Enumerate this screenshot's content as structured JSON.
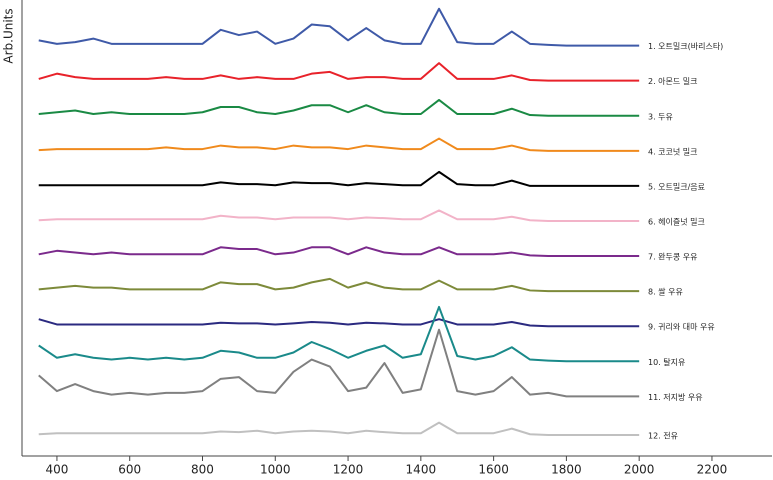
{
  "chart_data": {
    "type": "line",
    "y_label": "Arb.Units",
    "x": [
      350,
      400,
      450,
      500,
      550,
      600,
      650,
      700,
      750,
      800,
      850,
      900,
      950,
      1000,
      1050,
      1100,
      1150,
      1200,
      1250,
      1300,
      1350,
      1400,
      1450,
      1500,
      1550,
      1600,
      1650,
      1700,
      1750,
      1800,
      1850,
      1900,
      1950,
      2000
    ],
    "xlim": [
      304,
      2365
    ],
    "xticks": [
      400,
      600,
      800,
      1000,
      1200,
      1400,
      1600,
      1800,
      2000,
      2200
    ],
    "ylim": [
      0,
      13
    ],
    "series": [
      {
        "name": "1. 오트밀크(바리스타)",
        "color": "#3f5aa8",
        "values": [
          11.85,
          11.75,
          11.8,
          11.9,
          11.75,
          11.75,
          11.75,
          11.75,
          11.75,
          11.75,
          12.15,
          12.0,
          12.1,
          11.75,
          11.9,
          12.3,
          12.25,
          11.85,
          12.2,
          11.85,
          11.75,
          11.75,
          12.75,
          11.8,
          11.75,
          11.75,
          12.1,
          11.75,
          11.72,
          11.7,
          11.7,
          11.7,
          11.7,
          11.7
        ]
      },
      {
        "name": "2. 아몬드 밀크",
        "color": "#e8222a",
        "values": [
          10.75,
          10.9,
          10.8,
          10.75,
          10.75,
          10.75,
          10.75,
          10.8,
          10.75,
          10.75,
          10.85,
          10.75,
          10.8,
          10.75,
          10.75,
          10.9,
          10.95,
          10.75,
          10.8,
          10.8,
          10.75,
          10.75,
          11.2,
          10.75,
          10.75,
          10.75,
          10.85,
          10.72,
          10.7,
          10.7,
          10.7,
          10.7,
          10.7,
          10.7
        ]
      },
      {
        "name": "3. 두유",
        "color": "#1a8a44",
        "values": [
          9.75,
          9.8,
          9.85,
          9.75,
          9.8,
          9.75,
          9.75,
          9.75,
          9.75,
          9.8,
          9.95,
          9.95,
          9.8,
          9.75,
          9.85,
          10.0,
          10.0,
          9.8,
          10.0,
          9.8,
          9.75,
          9.75,
          10.15,
          9.75,
          9.75,
          9.75,
          9.9,
          9.72,
          9.7,
          9.7,
          9.7,
          9.7,
          9.7,
          9.7
        ]
      },
      {
        "name": "4. 코코넛 밀크",
        "color": "#f08a1c",
        "values": [
          8.72,
          8.75,
          8.75,
          8.75,
          8.75,
          8.75,
          8.75,
          8.8,
          8.75,
          8.75,
          8.85,
          8.8,
          8.8,
          8.75,
          8.85,
          8.8,
          8.8,
          8.75,
          8.85,
          8.8,
          8.75,
          8.75,
          9.05,
          8.75,
          8.75,
          8.75,
          8.85,
          8.72,
          8.7,
          8.7,
          8.7,
          8.7,
          8.7,
          8.7
        ]
      },
      {
        "name": "5. 오트밀크/음료",
        "color": "#000000",
        "values": [
          7.72,
          7.72,
          7.72,
          7.72,
          7.72,
          7.72,
          7.72,
          7.72,
          7.72,
          7.72,
          7.8,
          7.75,
          7.75,
          7.72,
          7.8,
          7.78,
          7.78,
          7.72,
          7.78,
          7.75,
          7.72,
          7.72,
          8.1,
          7.75,
          7.72,
          7.72,
          7.85,
          7.7,
          7.7,
          7.7,
          7.7,
          7.7,
          7.7,
          7.7
        ]
      },
      {
        "name": "6. 헤이즐넛 밀크",
        "color": "#f2b3c8",
        "values": [
          6.72,
          6.75,
          6.75,
          6.75,
          6.75,
          6.75,
          6.75,
          6.75,
          6.75,
          6.75,
          6.85,
          6.8,
          6.8,
          6.75,
          6.8,
          6.8,
          6.8,
          6.75,
          6.8,
          6.78,
          6.75,
          6.75,
          7.0,
          6.75,
          6.75,
          6.75,
          6.82,
          6.72,
          6.7,
          6.7,
          6.7,
          6.7,
          6.7,
          6.7
        ]
      },
      {
        "name": "7. 완두콩 우유",
        "color": "#7b2a8c",
        "values": [
          5.75,
          5.85,
          5.8,
          5.75,
          5.8,
          5.75,
          5.75,
          5.75,
          5.75,
          5.75,
          5.95,
          5.9,
          5.9,
          5.75,
          5.8,
          5.95,
          5.95,
          5.75,
          5.95,
          5.8,
          5.75,
          5.75,
          5.95,
          5.75,
          5.75,
          5.75,
          5.8,
          5.72,
          5.7,
          5.7,
          5.7,
          5.7,
          5.7,
          5.7
        ]
      },
      {
        "name": "8. 쌀 우유",
        "color": "#7d8a3a",
        "values": [
          4.75,
          4.8,
          4.85,
          4.8,
          4.8,
          4.75,
          4.75,
          4.75,
          4.75,
          4.75,
          4.95,
          4.9,
          4.9,
          4.75,
          4.8,
          4.95,
          5.05,
          4.8,
          4.95,
          4.8,
          4.75,
          4.75,
          5.0,
          4.75,
          4.75,
          4.75,
          4.85,
          4.72,
          4.7,
          4.7,
          4.7,
          4.7,
          4.7,
          4.7
        ]
      },
      {
        "name": "9. 귀리와 대마 우유",
        "color": "#2b2a80",
        "values": [
          3.9,
          3.75,
          3.75,
          3.75,
          3.75,
          3.75,
          3.75,
          3.75,
          3.75,
          3.75,
          3.8,
          3.78,
          3.78,
          3.75,
          3.78,
          3.82,
          3.8,
          3.75,
          3.8,
          3.78,
          3.75,
          3.75,
          3.9,
          3.75,
          3.75,
          3.75,
          3.82,
          3.72,
          3.7,
          3.7,
          3.7,
          3.7,
          3.7,
          3.7
        ]
      },
      {
        "name": "10. 탈지유",
        "color": "#1a8a8a",
        "values": [
          3.15,
          2.8,
          2.9,
          2.8,
          2.75,
          2.8,
          2.75,
          2.8,
          2.75,
          2.8,
          3.0,
          2.95,
          2.8,
          2.8,
          2.95,
          3.25,
          3.05,
          2.8,
          3.0,
          3.15,
          2.8,
          2.9,
          4.25,
          2.85,
          2.75,
          2.85,
          3.1,
          2.75,
          2.72,
          2.7,
          2.7,
          2.7,
          2.7,
          2.7
        ]
      },
      {
        "name": "11. 저지방 우유",
        "color": "#808080",
        "values": [
          2.3,
          1.85,
          2.05,
          1.85,
          1.75,
          1.8,
          1.75,
          1.8,
          1.8,
          1.85,
          2.2,
          2.25,
          1.85,
          1.8,
          2.4,
          2.75,
          2.55,
          1.85,
          1.95,
          2.65,
          1.8,
          1.9,
          3.6,
          1.85,
          1.75,
          1.85,
          2.25,
          1.75,
          1.8,
          1.7,
          1.7,
          1.7,
          1.7,
          1.7
        ]
      },
      {
        "name": "12. 전유",
        "color": "#c0c0c0",
        "values": [
          0.62,
          0.65,
          0.65,
          0.65,
          0.65,
          0.65,
          0.65,
          0.65,
          0.65,
          0.65,
          0.7,
          0.68,
          0.72,
          0.65,
          0.7,
          0.72,
          0.7,
          0.65,
          0.72,
          0.68,
          0.65,
          0.65,
          0.95,
          0.65,
          0.65,
          0.65,
          0.78,
          0.62,
          0.6,
          0.6,
          0.6,
          0.6,
          0.6,
          0.6
        ]
      }
    ]
  }
}
